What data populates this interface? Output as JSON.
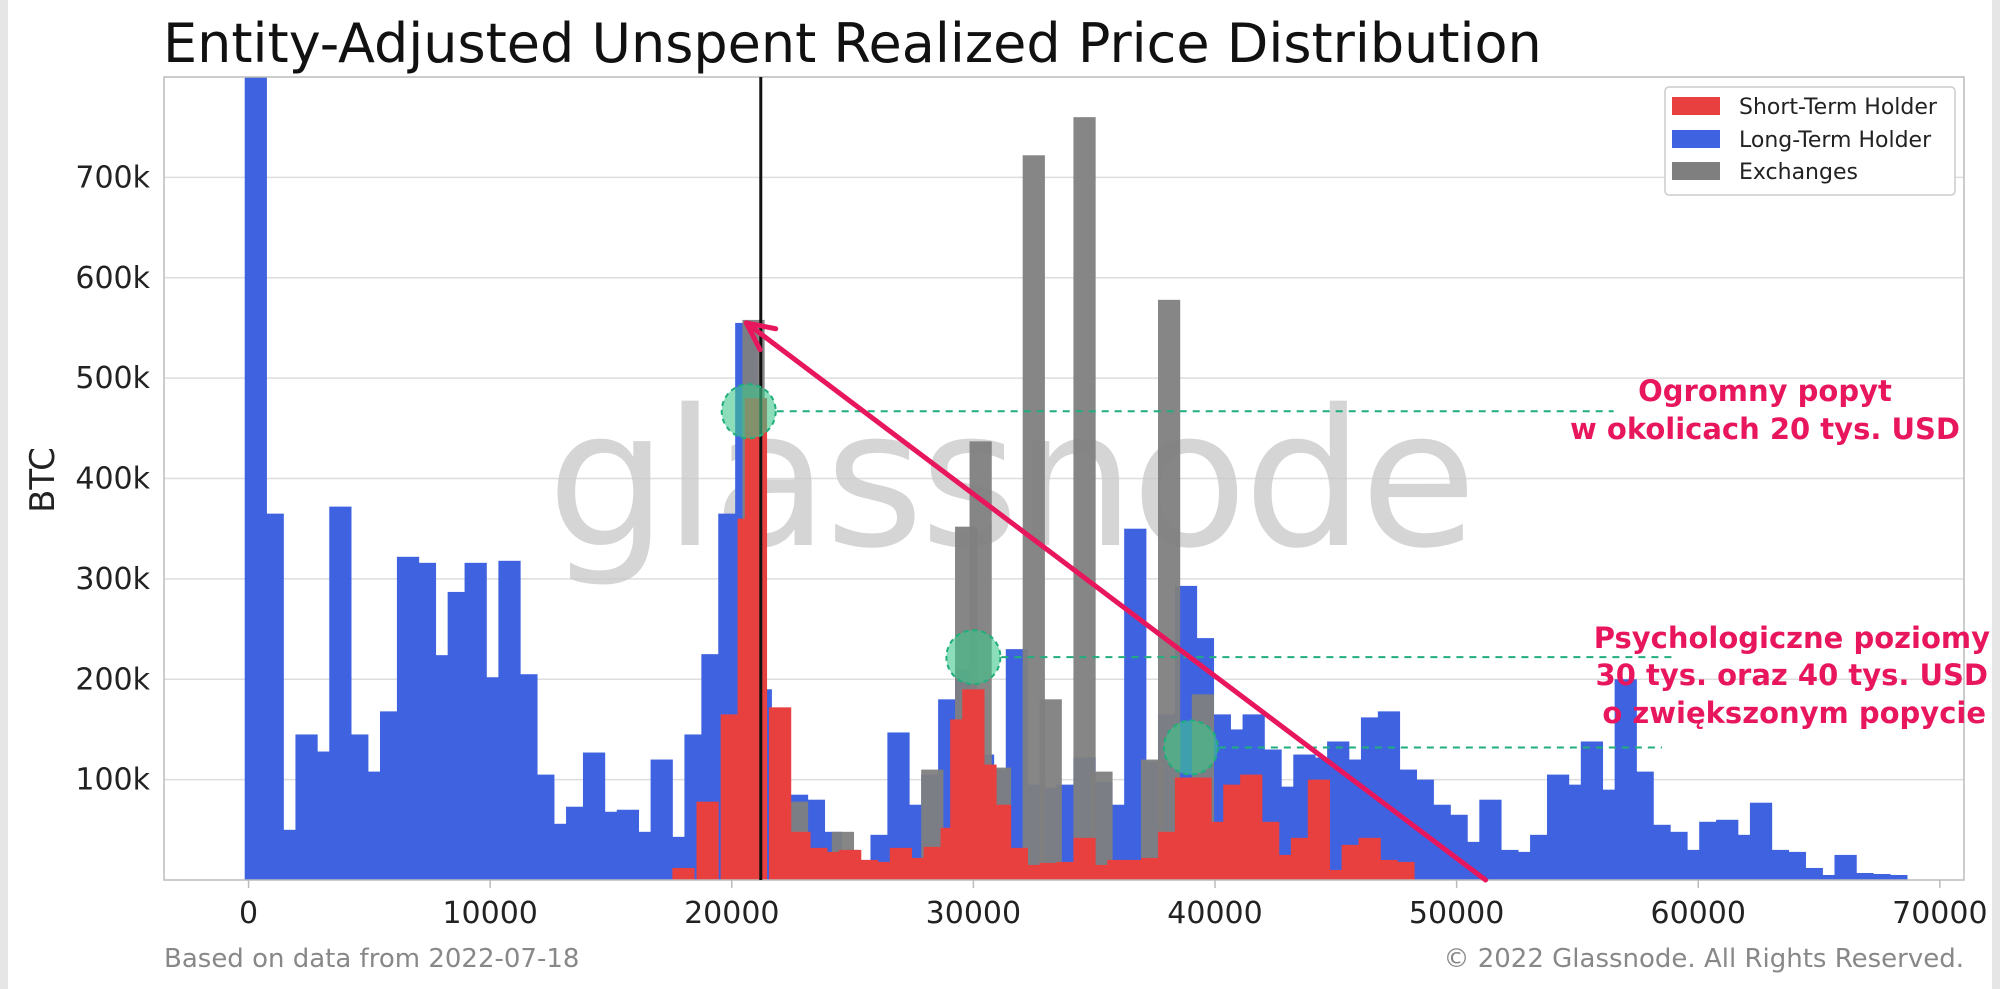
{
  "chart_data": {
    "type": "bar",
    "title": "Entity-Adjusted Unspent Realized Price Distribution",
    "ylabel": "BTC",
    "xlim": [
      -3500,
      71000
    ],
    "ylim": [
      0,
      800000
    ],
    "bin_width": 1000,
    "xticks": [
      0,
      10000,
      20000,
      30000,
      40000,
      50000,
      60000,
      70000
    ],
    "yticks": [
      100000,
      200000,
      300000,
      400000,
      500000,
      600000,
      700000
    ],
    "ytick_labels": [
      "100k",
      "200k",
      "300k",
      "400k",
      "500k",
      "600k",
      "700k"
    ],
    "grid": "horizontal",
    "legend_position": "top-right",
    "series": [
      {
        "name": "Short-Term Holder",
        "color": "#e8403f",
        "bins": [
          {
            "x": 18000,
            "y": 12000
          },
          {
            "x": 19000,
            "y": 78000
          },
          {
            "x": 20000,
            "y": 165000
          },
          {
            "x": 20700,
            "y": 360000
          },
          {
            "x": 21000,
            "y": 480000
          },
          {
            "x": 22000,
            "y": 172000
          },
          {
            "x": 22800,
            "y": 48000
          },
          {
            "x": 23500,
            "y": 32000
          },
          {
            "x": 24200,
            "y": 28000
          },
          {
            "x": 24900,
            "y": 30000
          },
          {
            "x": 25600,
            "y": 20000
          },
          {
            "x": 26300,
            "y": 18000
          },
          {
            "x": 27000,
            "y": 32000
          },
          {
            "x": 27700,
            "y": 22000
          },
          {
            "x": 28400,
            "y": 33000
          },
          {
            "x": 29100,
            "y": 52000
          },
          {
            "x": 29500,
            "y": 160000
          },
          {
            "x": 30000,
            "y": 190000
          },
          {
            "x": 30500,
            "y": 115000
          },
          {
            "x": 31100,
            "y": 75000
          },
          {
            "x": 31800,
            "y": 32000
          },
          {
            "x": 32500,
            "y": 15000
          },
          {
            "x": 33200,
            "y": 17000
          },
          {
            "x": 33900,
            "y": 18000
          },
          {
            "x": 34600,
            "y": 42000
          },
          {
            "x": 35300,
            "y": 15000
          },
          {
            "x": 36000,
            "y": 20000
          },
          {
            "x": 36700,
            "y": 20000
          },
          {
            "x": 37400,
            "y": 22000
          },
          {
            "x": 38100,
            "y": 48000
          },
          {
            "x": 38800,
            "y": 102000
          },
          {
            "x": 39400,
            "y": 102000
          },
          {
            "x": 40100,
            "y": 58000
          },
          {
            "x": 40800,
            "y": 95000
          },
          {
            "x": 41500,
            "y": 105000
          },
          {
            "x": 42200,
            "y": 58000
          },
          {
            "x": 42900,
            "y": 25000
          },
          {
            "x": 43600,
            "y": 42000
          },
          {
            "x": 44300,
            "y": 100000
          },
          {
            "x": 45000,
            "y": 10000
          },
          {
            "x": 45700,
            "y": 35000
          },
          {
            "x": 46400,
            "y": 42000
          },
          {
            "x": 47100,
            "y": 20000
          },
          {
            "x": 47800,
            "y": 18000
          }
        ]
      },
      {
        "name": "Long-Term Holder",
        "color": "#3f63e0",
        "bins": [
          {
            "x": 300,
            "y": 800000
          },
          {
            "x": 1000,
            "y": 365000
          },
          {
            "x": 1700,
            "y": 50000
          },
          {
            "x": 2400,
            "y": 145000
          },
          {
            "x": 3100,
            "y": 128000
          },
          {
            "x": 3800,
            "y": 372000
          },
          {
            "x": 4500,
            "y": 145000
          },
          {
            "x": 5200,
            "y": 108000
          },
          {
            "x": 5900,
            "y": 168000
          },
          {
            "x": 6600,
            "y": 322000
          },
          {
            "x": 7300,
            "y": 316000
          },
          {
            "x": 8000,
            "y": 224000
          },
          {
            "x": 8700,
            "y": 287000
          },
          {
            "x": 9400,
            "y": 316000
          },
          {
            "x": 10100,
            "y": 202000
          },
          {
            "x": 10800,
            "y": 318000
          },
          {
            "x": 11500,
            "y": 205000
          },
          {
            "x": 12200,
            "y": 105000
          },
          {
            "x": 12900,
            "y": 56000
          },
          {
            "x": 13600,
            "y": 73000
          },
          {
            "x": 14300,
            "y": 127000
          },
          {
            "x": 15000,
            "y": 68000
          },
          {
            "x": 15700,
            "y": 70000
          },
          {
            "x": 16400,
            "y": 48000
          },
          {
            "x": 17100,
            "y": 120000
          },
          {
            "x": 17800,
            "y": 43000
          },
          {
            "x": 18500,
            "y": 145000
          },
          {
            "x": 19200,
            "y": 225000
          },
          {
            "x": 19900,
            "y": 365000
          },
          {
            "x": 20600,
            "y": 555000
          },
          {
            "x": 21200,
            "y": 190000
          },
          {
            "x": 22000,
            "y": 80000
          },
          {
            "x": 22700,
            "y": 85000
          },
          {
            "x": 23400,
            "y": 80000
          },
          {
            "x": 24100,
            "y": 48000
          },
          {
            "x": 24800,
            "y": 30000
          },
          {
            "x": 25500,
            "y": 20000
          },
          {
            "x": 26200,
            "y": 45000
          },
          {
            "x": 26900,
            "y": 147000
          },
          {
            "x": 27600,
            "y": 75000
          },
          {
            "x": 28300,
            "y": 105000
          },
          {
            "x": 29000,
            "y": 180000
          },
          {
            "x": 29700,
            "y": 210000
          },
          {
            "x": 30400,
            "y": 125000
          },
          {
            "x": 31100,
            "y": 110000
          },
          {
            "x": 31800,
            "y": 230000
          },
          {
            "x": 32500,
            "y": 95000
          },
          {
            "x": 33200,
            "y": 92000
          },
          {
            "x": 33900,
            "y": 95000
          },
          {
            "x": 34600,
            "y": 122000
          },
          {
            "x": 35300,
            "y": 98000
          },
          {
            "x": 36000,
            "y": 75000
          },
          {
            "x": 36700,
            "y": 350000
          },
          {
            "x": 37400,
            "y": 118000
          },
          {
            "x": 38100,
            "y": 165000
          },
          {
            "x": 38800,
            "y": 293000
          },
          {
            "x": 39500,
            "y": 241000
          },
          {
            "x": 40200,
            "y": 165000
          },
          {
            "x": 40900,
            "y": 150000
          },
          {
            "x": 41600,
            "y": 165000
          },
          {
            "x": 42300,
            "y": 130000
          },
          {
            "x": 43000,
            "y": 93000
          },
          {
            "x": 43700,
            "y": 125000
          },
          {
            "x": 44400,
            "y": 122000
          },
          {
            "x": 45100,
            "y": 138000
          },
          {
            "x": 45800,
            "y": 120000
          },
          {
            "x": 46500,
            "y": 162000
          },
          {
            "x": 47200,
            "y": 168000
          },
          {
            "x": 47900,
            "y": 110000
          },
          {
            "x": 48600,
            "y": 100000
          },
          {
            "x": 49300,
            "y": 75000
          },
          {
            "x": 50000,
            "y": 65000
          },
          {
            "x": 50700,
            "y": 38000
          },
          {
            "x": 51400,
            "y": 80000
          },
          {
            "x": 52100,
            "y": 30000
          },
          {
            "x": 52800,
            "y": 28000
          },
          {
            "x": 53500,
            "y": 45000
          },
          {
            "x": 54200,
            "y": 105000
          },
          {
            "x": 54900,
            "y": 95000
          },
          {
            "x": 55600,
            "y": 138000
          },
          {
            "x": 56300,
            "y": 90000
          },
          {
            "x": 57000,
            "y": 200000
          },
          {
            "x": 57700,
            "y": 108000
          },
          {
            "x": 58400,
            "y": 55000
          },
          {
            "x": 59100,
            "y": 48000
          },
          {
            "x": 59800,
            "y": 30000
          },
          {
            "x": 60500,
            "y": 58000
          },
          {
            "x": 61200,
            "y": 60000
          },
          {
            "x": 61900,
            "y": 45000
          },
          {
            "x": 62600,
            "y": 77000
          },
          {
            "x": 63300,
            "y": 30000
          },
          {
            "x": 64000,
            "y": 28000
          },
          {
            "x": 64700,
            "y": 12000
          },
          {
            "x": 65400,
            "y": 5000
          },
          {
            "x": 66100,
            "y": 25000
          },
          {
            "x": 66800,
            "y": 7000
          },
          {
            "x": 67500,
            "y": 6000
          },
          {
            "x": 68200,
            "y": 5000
          }
        ]
      },
      {
        "name": "Exchanges",
        "color": "#7f7f7f",
        "bins": [
          {
            "x": 20900,
            "y": 558000
          },
          {
            "x": 22700,
            "y": 78000
          },
          {
            "x": 24600,
            "y": 48000
          },
          {
            "x": 28300,
            "y": 110000
          },
          {
            "x": 29700,
            "y": 352000
          },
          {
            "x": 30300,
            "y": 437000
          },
          {
            "x": 31100,
            "y": 112000
          },
          {
            "x": 32500,
            "y": 722000
          },
          {
            "x": 33200,
            "y": 180000
          },
          {
            "x": 34600,
            "y": 760000
          },
          {
            "x": 35300,
            "y": 108000
          },
          {
            "x": 37400,
            "y": 120000
          },
          {
            "x": 38100,
            "y": 578000
          },
          {
            "x": 39500,
            "y": 185000
          }
        ]
      }
    ],
    "reference_line": {
      "x": 21200
    },
    "annotations": {
      "arrow": {
        "from": [
          51200,
          0
        ],
        "to": [
          20600,
          555000
        ]
      },
      "markers": [
        {
          "x": 20700,
          "y": 467000,
          "guide_to_x": 56500
        },
        {
          "x": 30000,
          "y": 222000,
          "guide_to_x": 59000
        },
        {
          "x": 39000,
          "y": 132000,
          "guide_to_x": 58500
        }
      ],
      "text1": [
        "Ogromny popyt",
        "w okolicach 20 tys. USD"
      ],
      "text2": [
        "Psychologiczne poziomy",
        "30 tys. oraz 40 tys. USD",
        "o zwiększonym popycie"
      ]
    }
  },
  "watermark": "glassnode",
  "footer": {
    "left": "Based on data from 2022-07-18",
    "right": "© 2022 Glassnode. All Rights Reserved."
  },
  "colors": {
    "annotation": "#e8175d",
    "marker_fill": "#3ec88a",
    "guide": "#1fae7c",
    "grid": "#dddddd",
    "axis": "#bbbbbb"
  }
}
